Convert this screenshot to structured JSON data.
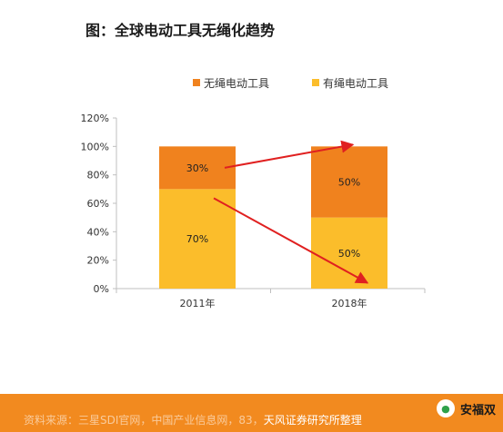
{
  "title": "图：全球电动工具无绳化趋势",
  "footer": {
    "source_prefix": "资料来源：三星SDI官网，中国产业信息网，",
    "source_num": "83，",
    "source_suffix": "天风证券研究所整理",
    "brand": "安福双"
  },
  "colors": {
    "cordless": "#f0821e",
    "corded": "#fbbd2b",
    "arrow": "#e02020",
    "grid": "#d9d9d9"
  },
  "chart_data": {
    "type": "bar",
    "stacked": true,
    "percent": true,
    "title": "",
    "categories": [
      "2011年",
      "2018年"
    ],
    "series": [
      {
        "name": "有绳电动工具",
        "values": [
          70,
          50
        ],
        "labels": [
          "70%",
          "50%"
        ]
      },
      {
        "name": "无绳电动工具",
        "values": [
          30,
          50
        ],
        "labels": [
          "30%",
          "50%"
        ]
      }
    ],
    "yticks": [
      "0%",
      "20%",
      "40%",
      "60%",
      "80%",
      "100%",
      "120%"
    ],
    "ylim": [
      0,
      120
    ],
    "legend": {
      "placement": "top",
      "order": [
        "无绳电动工具",
        "有绳电动工具"
      ]
    },
    "grid": false
  }
}
